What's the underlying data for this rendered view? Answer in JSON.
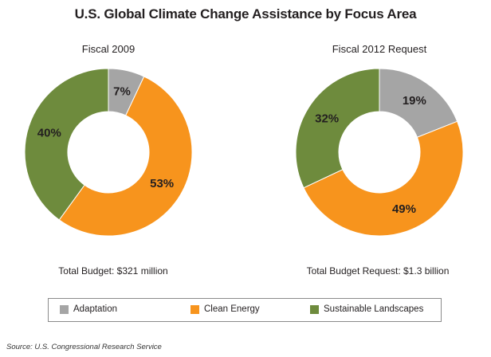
{
  "chart_data": {
    "title": "U.S. Global Climate Change Assistance by Focus Area",
    "type": "pie",
    "categories": [
      "Adaptation",
      "Clean Energy",
      "Sustainable Landscapes"
    ],
    "colors": {
      "Adaptation": "#a5a5a5",
      "Clean Energy": "#f7941d",
      "Sustainable Landscapes": "#6e8b3d"
    },
    "charts": [
      {
        "subtitle": "Fiscal 2009",
        "values": [
          7,
          53,
          40
        ],
        "labels": [
          "7%",
          "53%",
          "40%"
        ],
        "total": "Total Budget: $321 million"
      },
      {
        "subtitle": "Fiscal 2012 Request",
        "values": [
          19,
          49,
          32
        ],
        "labels": [
          "19%",
          "49%",
          "32%"
        ],
        "total": "Total Budget Request: $1.3 billion"
      }
    ]
  },
  "source": "Source: U.S. Congressional Research Service"
}
